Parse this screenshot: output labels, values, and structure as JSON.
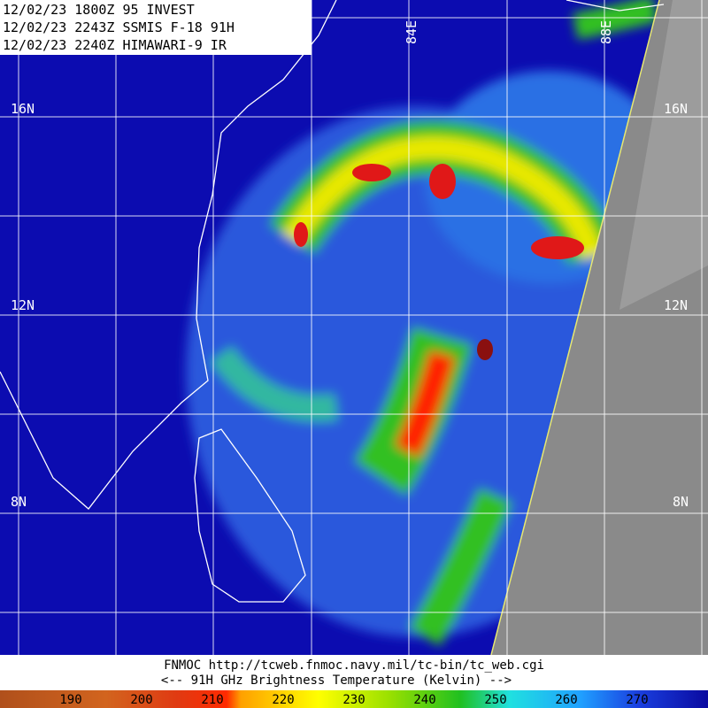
{
  "header": {
    "lines": [
      "12/02/23 1800Z  95 INVEST",
      "12/02/23 2243Z  SSMIS F-18 91H",
      "12/02/23 2240Z  HIMAWARI-9 IR"
    ]
  },
  "grid_labels": {
    "lat_left": [
      "16N",
      "12N",
      "8N"
    ],
    "lat_right": [
      "16N",
      "12N",
      "8N"
    ],
    "lon": [
      "84E",
      "88E"
    ]
  },
  "footer": {
    "source": "FNMOC  http://tcweb.fnmoc.navy.mil/tc-bin/tc_web.cgi",
    "caption": "<--  91H GHz Brightness Temperature (Kelvin)  -->"
  },
  "colorbar": {
    "labels": [
      190,
      200,
      210,
      220,
      230,
      240,
      250,
      260,
      270
    ]
  }
}
